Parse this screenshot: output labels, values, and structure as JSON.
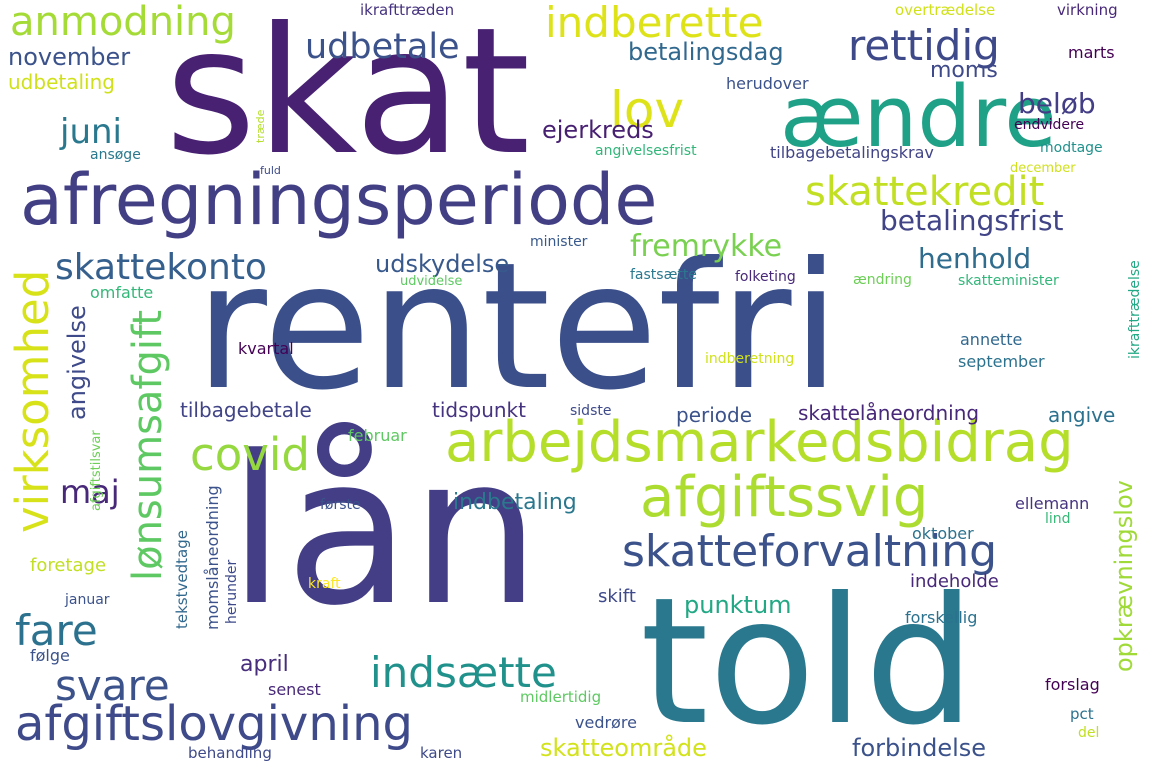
{
  "words": [
    {
      "text": "skat",
      "color": "#482173"
    },
    {
      "text": "rentefri",
      "color": "#3b4f8a"
    },
    {
      "text": "lån",
      "color": "#433e85"
    },
    {
      "text": "told",
      "color": "#2a788e"
    },
    {
      "text": "afregningsperiode",
      "color": "#423f85"
    },
    {
      "text": "ændre",
      "color": "#1fa187"
    },
    {
      "text": "arbejdsmarkedsbidrag",
      "color": "#b5de2b"
    },
    {
      "text": "afgiftssvig",
      "color": "#addc30"
    },
    {
      "text": "skatteforvaltning",
      "color": "#3b528b"
    },
    {
      "text": "afgiftslovgivning",
      "color": "#3e4a89"
    },
    {
      "text": "virksomhed",
      "color": "#d8e219"
    },
    {
      "text": "lønsumsafgift",
      "color": "#5ec962"
    },
    {
      "text": "anmodning",
      "color": "#a5db36"
    },
    {
      "text": "indberette",
      "color": "#dde318"
    },
    {
      "text": "rettidig",
      "color": "#3e4989"
    },
    {
      "text": "udbetale",
      "color": "#3b528b"
    },
    {
      "text": "lov",
      "color": "#dde318"
    },
    {
      "text": "skattekredit",
      "color": "#c2df23"
    },
    {
      "text": "covid",
      "color": "#95d840"
    },
    {
      "text": "skattekonto",
      "color": "#355f8d"
    },
    {
      "text": "indsætte",
      "color": "#21918c"
    },
    {
      "text": "svare",
      "color": "#3b528b"
    },
    {
      "text": "fare",
      "color": "#2c728e"
    },
    {
      "text": "maj",
      "color": "#482878"
    },
    {
      "text": "juni",
      "color": "#2a788e"
    },
    {
      "text": "fremrykke",
      "color": "#7ad151"
    },
    {
      "text": "henhold",
      "color": "#2f6c8e"
    },
    {
      "text": "betalingsfrist",
      "color": "#414487"
    },
    {
      "text": "udskydelse",
      "color": "#38598c"
    },
    {
      "text": "ejerkreds",
      "color": "#482071"
    },
    {
      "text": "beløb",
      "color": "#433e85"
    },
    {
      "text": "moms",
      "color": "#3e4a89"
    },
    {
      "text": "betalingsdag",
      "color": "#31688e"
    },
    {
      "text": "november",
      "color": "#3b528b"
    },
    {
      "text": "udbetaling",
      "color": "#d0e11c"
    },
    {
      "text": "angivelse",
      "color": "#3e4a89"
    },
    {
      "text": "omfatte",
      "color": "#35b779"
    },
    {
      "text": "tilbagebetale",
      "color": "#414487"
    },
    {
      "text": "tidspunkt",
      "color": "#46337f"
    },
    {
      "text": "periode",
      "color": "#3b528b"
    },
    {
      "text": "skattelåneordning",
      "color": "#482878"
    },
    {
      "text": "angive",
      "color": "#2c728e"
    },
    {
      "text": "indbetaling",
      "color": "#2a788e"
    },
    {
      "text": "opkrævningslov",
      "color": "#a0da39"
    },
    {
      "text": "punktum",
      "color": "#22a884"
    },
    {
      "text": "april",
      "color": "#472d7b"
    },
    {
      "text": "skatteområde",
      "color": "#d2e21b"
    },
    {
      "text": "forbindelse",
      "color": "#3b528b"
    },
    {
      "text": "skift",
      "color": "#3e4a89"
    },
    {
      "text": "indeholde",
      "color": "#482878"
    },
    {
      "text": "ikrafttræden",
      "color": "#46337f"
    },
    {
      "text": "overtrædelse",
      "color": "#d0e11c"
    },
    {
      "text": "virkning",
      "color": "#482878"
    },
    {
      "text": "marts",
      "color": "#440154"
    },
    {
      "text": "herudover",
      "color": "#3b528b"
    },
    {
      "text": "endvidere",
      "color": "#440154"
    },
    {
      "text": "angivelsesfrist",
      "color": "#32b67a"
    },
    {
      "text": "tilbagebetalingskrav",
      "color": "#414487"
    },
    {
      "text": "modtage",
      "color": "#21918c"
    },
    {
      "text": "december",
      "color": "#d0e11c"
    },
    {
      "text": "træde",
      "color": "#b5de2b"
    },
    {
      "text": "ansøge",
      "color": "#2a788e"
    },
    {
      "text": "fuld",
      "color": "#3e4a89"
    },
    {
      "text": "minister",
      "color": "#38598c"
    },
    {
      "text": "fastsætte",
      "color": "#2a788e"
    },
    {
      "text": "folketing",
      "color": "#482878"
    },
    {
      "text": "ændring",
      "color": "#6ece58"
    },
    {
      "text": "skatteminister",
      "color": "#32b67a"
    },
    {
      "text": "udvidelse",
      "color": "#5ec962"
    },
    {
      "text": "kvartal",
      "color": "#440154"
    },
    {
      "text": "indberetning",
      "color": "#d0e11c"
    },
    {
      "text": "annette",
      "color": "#31688e"
    },
    {
      "text": "september",
      "color": "#2c728e"
    },
    {
      "text": "ikrafttrædelse",
      "color": "#22a884"
    },
    {
      "text": "sidste",
      "color": "#3e4a89"
    },
    {
      "text": "februar",
      "color": "#5ec962"
    },
    {
      "text": "afgiftstilsvar",
      "color": "#6ece58"
    },
    {
      "text": "første",
      "color": "#3b528b"
    },
    {
      "text": "ellemann",
      "color": "#46337f"
    },
    {
      "text": "lind",
      "color": "#37b878"
    },
    {
      "text": "oktober",
      "color": "#2c728e"
    },
    {
      "text": "momslåneordning",
      "color": "#3b528b"
    },
    {
      "text": "tekstvedtage",
      "color": "#31688e"
    },
    {
      "text": "herunder",
      "color": "#3e4a89"
    },
    {
      "text": "foretage",
      "color": "#c2df23"
    },
    {
      "text": "kraft",
      "color": "#fde725"
    },
    {
      "text": "januar",
      "color": "#3b528b"
    },
    {
      "text": "forskellig",
      "color": "#2c728e"
    },
    {
      "text": "følge",
      "color": "#3b528b"
    },
    {
      "text": "senest",
      "color": "#482878"
    },
    {
      "text": "midlertidig",
      "color": "#5ec962"
    },
    {
      "text": "forslag",
      "color": "#440154"
    },
    {
      "text": "vedrøre",
      "color": "#3b528b"
    },
    {
      "text": "pct",
      "color": "#2c728e"
    },
    {
      "text": "del",
      "color": "#c2df23"
    },
    {
      "text": "behandling",
      "color": "#3e4a89"
    },
    {
      "text": "karen",
      "color": "#3e4a89"
    }
  ]
}
